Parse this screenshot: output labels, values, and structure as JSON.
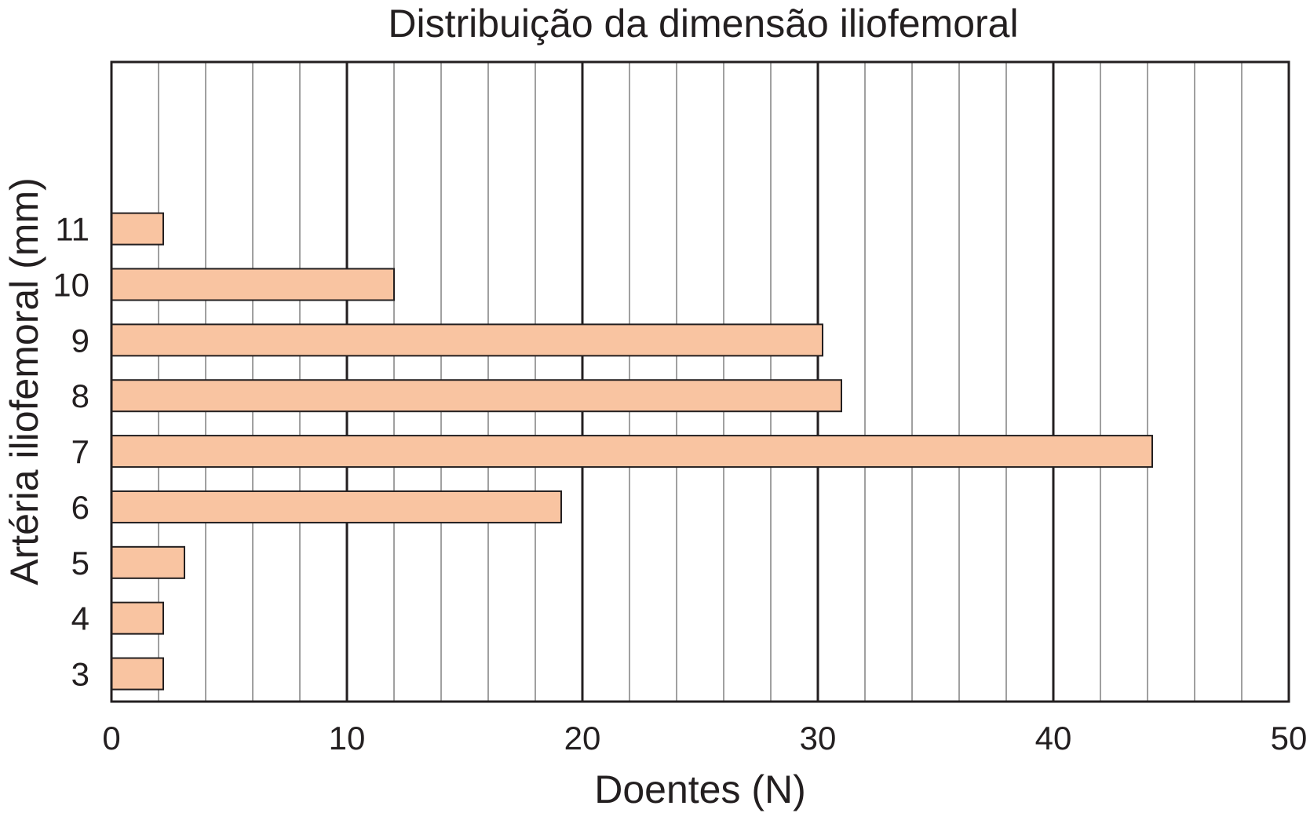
{
  "chart_data": {
    "type": "bar",
    "orientation": "horizontal",
    "title": "Distribuição da dimensão iliofemoral",
    "xlabel": "Doentes (N)",
    "ylabel": "Artéria iliofemoral (mm)",
    "categories": [
      "3",
      "4",
      "5",
      "6",
      "7",
      "8",
      "9",
      "10",
      "11"
    ],
    "values": [
      2.2,
      2.2,
      3.1,
      19.1,
      44.2,
      31.0,
      30.2,
      12.0,
      2.2
    ],
    "xlim": [
      0,
      50
    ],
    "ylim": [
      2.5,
      14
    ],
    "xticks": [
      0,
      10,
      20,
      30,
      40,
      50
    ],
    "x_minor_step": 2,
    "grid": true,
    "colors": {
      "bar_fill": "#f9c4a1",
      "bar_stroke": "#231f20",
      "major_grid": "#231f20",
      "minor_grid": "#a0a0a0",
      "text": "#231f20"
    }
  }
}
